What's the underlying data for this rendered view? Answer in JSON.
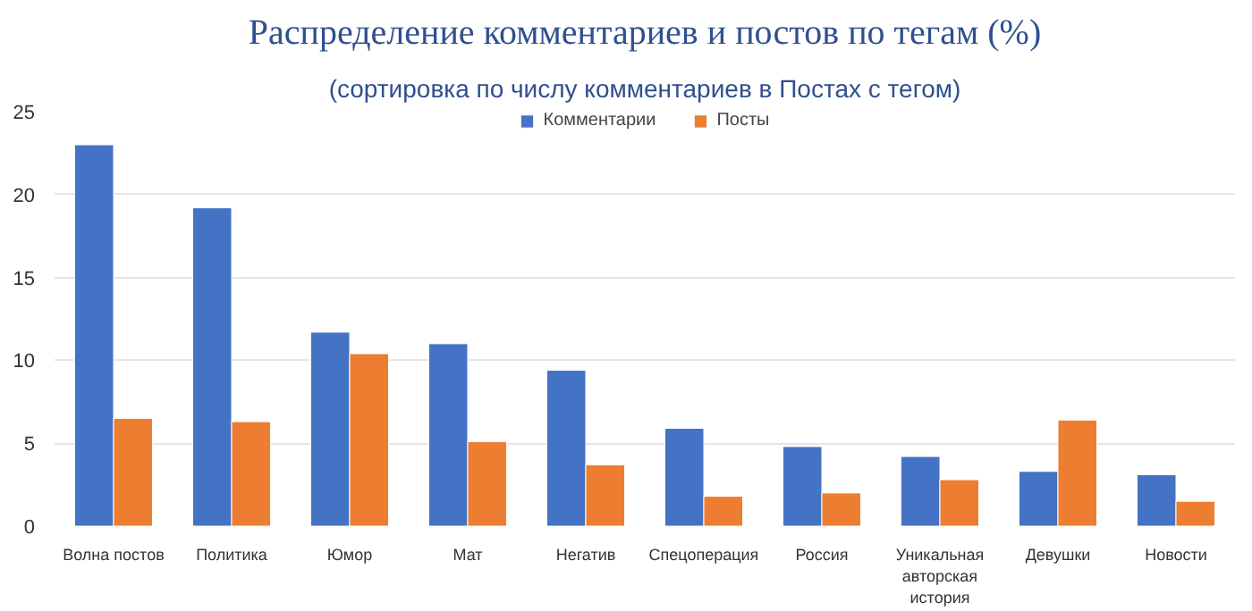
{
  "chart_data": {
    "type": "bar",
    "title": "Распределение комментариев и постов по тегам (%)",
    "subtitle": "(сортировка по числу комментариев в Постах с тегом)",
    "categories": [
      "Волна постов",
      "Политика",
      "Юмор",
      "Мат",
      "Негатив",
      "Спецоперация",
      "Россия",
      "Уникальная\nавторская\nистория",
      "Девушки",
      "Новости"
    ],
    "series": [
      {
        "name": "Комментарии",
        "color": "#4472c4",
        "values": [
          23.0,
          19.2,
          11.7,
          11.0,
          9.4,
          5.9,
          4.8,
          4.2,
          3.3,
          3.1
        ]
      },
      {
        "name": "Посты",
        "color": "#ed7d31",
        "values": [
          6.5,
          6.3,
          10.4,
          5.1,
          3.7,
          1.8,
          2.0,
          2.8,
          6.4,
          1.5
        ]
      }
    ],
    "ylim": [
      0,
      25
    ],
    "yticks": [
      0,
      5,
      10,
      15,
      20,
      25
    ],
    "grid": "y",
    "legend": "top"
  }
}
